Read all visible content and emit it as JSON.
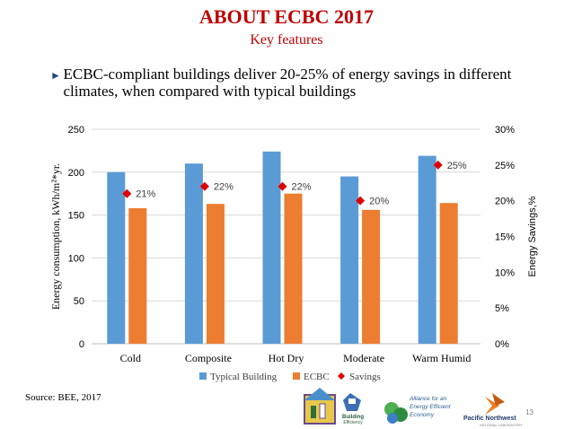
{
  "slide": {
    "title": "ABOUT ECBC 2017",
    "subtitle": "Key features",
    "bullet": "ECBC-compliant buildings deliver 20-25% of energy savings in different climates, when compared with typical buildings",
    "source": "Source: BEE, 2017",
    "page_number": "13"
  },
  "logos": {
    "logo1_text": "Building Efficiency Accelerator",
    "logo2_text": "Alliance for an Energy Efficient Economy",
    "logo3_text": "Pacific Northwest",
    "logo3_sub": "NATIONAL LABORATORY"
  },
  "colors": {
    "typical": "#5b9bd5",
    "ecbc": "#ed7d31",
    "savings": "#e00000",
    "title": "#c00000",
    "grid": "#d9d9d9"
  },
  "chart_data": {
    "type": "bar",
    "categories": [
      "Cold",
      "Composite",
      "Hot Dry",
      "Moderate",
      "Warm Humid"
    ],
    "series": [
      {
        "name": "Typical Building",
        "values": [
          200,
          210,
          224,
          195,
          219
        ]
      },
      {
        "name": "ECBC",
        "values": [
          158,
          163,
          175,
          156,
          164
        ]
      }
    ],
    "secondary_series": {
      "name": "Savings",
      "type": "scatter",
      "values": [
        21,
        22,
        22,
        20,
        25
      ],
      "labels": [
        "21%",
        "22%",
        "22%",
        "20%",
        "25%"
      ]
    },
    "ylabel": "Energy consumption, kWh/m²*yr.",
    "y2label": "Energy Savings,%",
    "ylim": [
      0,
      250
    ],
    "y2lim": [
      0,
      30
    ],
    "yticks": [
      "0",
      "50",
      "100",
      "150",
      "200",
      "250"
    ],
    "y2ticks": [
      "0%",
      "5%",
      "10%",
      "15%",
      "20%",
      "25%",
      "30%"
    ],
    "grid": true,
    "legend": "bottom"
  }
}
